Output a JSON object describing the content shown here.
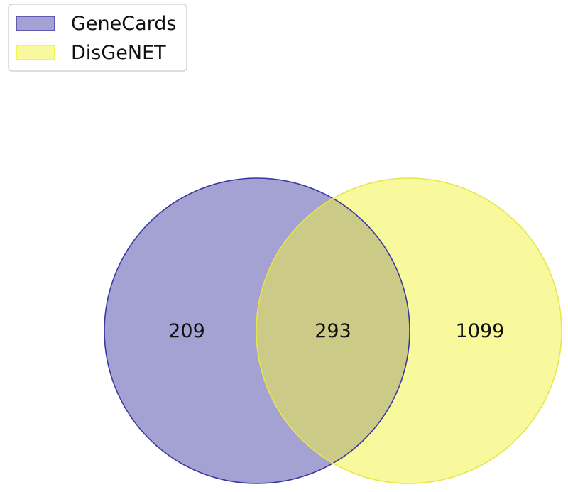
{
  "legend": {
    "items": [
      {
        "label": "GeneCards",
        "color": "#4a46a8"
      },
      {
        "label": "DisGeNET",
        "color": "#f2f23a"
      }
    ]
  },
  "venn": {
    "sets": [
      {
        "name": "GeneCards",
        "fill": "#4a46a8",
        "stroke": "#3a37a0"
      },
      {
        "name": "DisGeNET",
        "fill": "#f2f23a",
        "stroke": "#e6e64a"
      }
    ],
    "regions": {
      "only_genecards": "209",
      "overlap": "293",
      "only_disgenet": "1099"
    }
  }
}
